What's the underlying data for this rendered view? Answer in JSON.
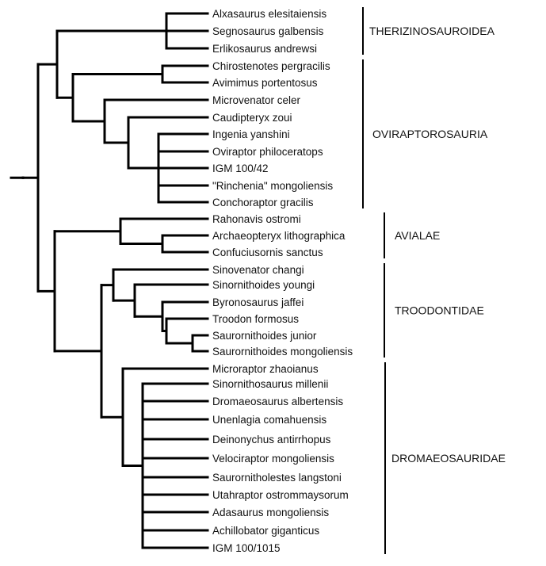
{
  "tree": {
    "taxa": [
      "Alxasaurus elesitaiensis",
      "Segnosaurus galbensis",
      "Erlikosaurus andrewsi",
      "Chirostenotes pergracilis",
      "Avimimus portentosus",
      "Microvenator celer",
      "Caudipteryx zoui",
      "Ingenia yanshini",
      "Oviraptor philoceratops",
      "IGM 100/42",
      "\"Rinchenia\" mongoliensis",
      "Conchoraptor gracilis",
      "Rahonavis ostromi",
      "Archaeopteryx lithographica",
      "Confuciusornis sanctus",
      "Sinovenator changi",
      "Sinornithoides youngi",
      "Byronosaurus jaffei",
      "Troodon formosus",
      "Saurornithoides junior",
      "Saurornithoides mongoliensis",
      "Microraptor zhaoianus",
      "Sinornithosaurus millenii",
      "Dromaeosaurus albertensis",
      "Unenlagia comahuensis",
      "Deinonychus antirrhopus",
      "Velociraptor mongoliensis",
      "Saurornitholestes langstoni",
      "Utahraptor ostrommaysorum",
      "Adasaurus mongoliensis",
      "Achillobator giganticus",
      "IGM 100/1015"
    ],
    "clades": [
      {
        "label": "THERIZINOSAUROIDEA",
        "first": 0,
        "last": 2
      },
      {
        "label": "OVIRAPTOROSAURIA",
        "first": 3,
        "last": 11
      },
      {
        "label": "AVIALAE",
        "first": 12,
        "last": 14
      },
      {
        "label": "TROODONTIDAE",
        "first": 15,
        "last": 20
      },
      {
        "label": "DROMAEOSAURIDAE",
        "first": 21,
        "last": 31
      }
    ]
  }
}
